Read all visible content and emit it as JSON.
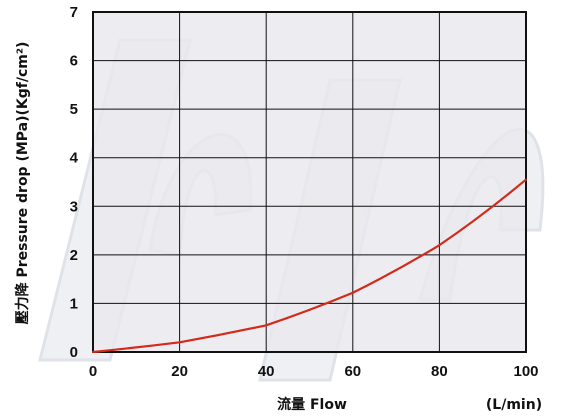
{
  "chart_data": {
    "type": "line",
    "xlabel": "流量  Flow",
    "xunit": "(L/min)",
    "ylabel": "壓力降  Pressure drop (MPa)(Kgf/cm²)",
    "xlim": [
      0,
      100
    ],
    "ylim": [
      0,
      7
    ],
    "xticks": [
      "0",
      "20",
      "40",
      "60",
      "80",
      "100"
    ],
    "yticks": [
      "0",
      "1",
      "2",
      "3",
      "4",
      "5",
      "6",
      "7"
    ],
    "grid": true,
    "series": [
      {
        "x": [
          0,
          20,
          40,
          60,
          80,
          100
        ],
        "y": [
          0,
          0.2,
          0.55,
          1.22,
          2.2,
          3.55
        ]
      }
    ],
    "colors": {
      "line": "#d42a1a",
      "plot_background": "#e8e9ee",
      "grid": "#111111"
    },
    "watermark": "GIULIANI"
  }
}
